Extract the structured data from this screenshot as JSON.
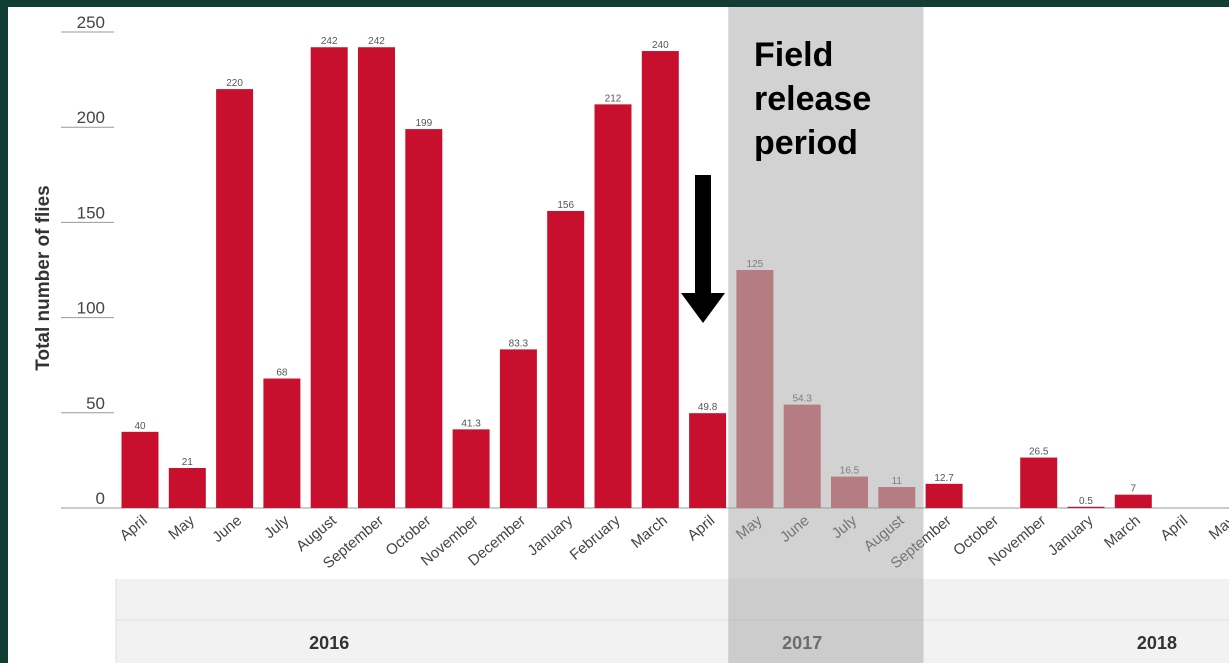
{
  "colors": {
    "bar": "#c8102e",
    "bar_muted": "#c4535e",
    "shade": "#a6a6a6",
    "year_band": "#f2f2f2",
    "axis": "#999999",
    "tick_text": "#444444",
    "frame": "#123d33"
  },
  "annotation": {
    "lines": [
      "Field",
      "release",
      "period"
    ],
    "arrow": "down-arrow"
  },
  "chart_data": {
    "type": "bar",
    "ylabel": "Total number of flies",
    "xlabel": "",
    "ylim": [
      0,
      250
    ],
    "yticks": [
      0,
      50,
      100,
      150,
      200,
      250
    ],
    "grid": false,
    "legend": "none",
    "categories": [
      "April",
      "May",
      "June",
      "July",
      "August",
      "September",
      "October",
      "November",
      "December",
      "January",
      "February",
      "March",
      "April",
      "May",
      "June",
      "July",
      "August",
      "September",
      "October",
      "November",
      "January",
      "March",
      "April",
      "May"
    ],
    "values": [
      40,
      21,
      220,
      68,
      242,
      242,
      199,
      41.3,
      83.3,
      156,
      212,
      240,
      49.8,
      125,
      54.3,
      16.5,
      11,
      12.7,
      null,
      26.5,
      0.5,
      7,
      null,
      null
    ],
    "labels": [
      "40",
      "21",
      "220",
      "68",
      "242",
      "242",
      "199",
      "41.3",
      "83.3",
      "156",
      "212",
      "240",
      "49.8",
      "125",
      "54.3",
      "16.5",
      "11",
      "12.7",
      "",
      "26.5",
      "0.5",
      "7",
      "",
      ""
    ],
    "shaded_categories": [
      13,
      14,
      15,
      16
    ],
    "years": [
      {
        "label": "2016",
        "from": 0,
        "to": 8
      },
      {
        "label": "2017",
        "from": 9,
        "to": 19
      },
      {
        "label": "2018",
        "from": 20,
        "to": 23
      }
    ]
  }
}
